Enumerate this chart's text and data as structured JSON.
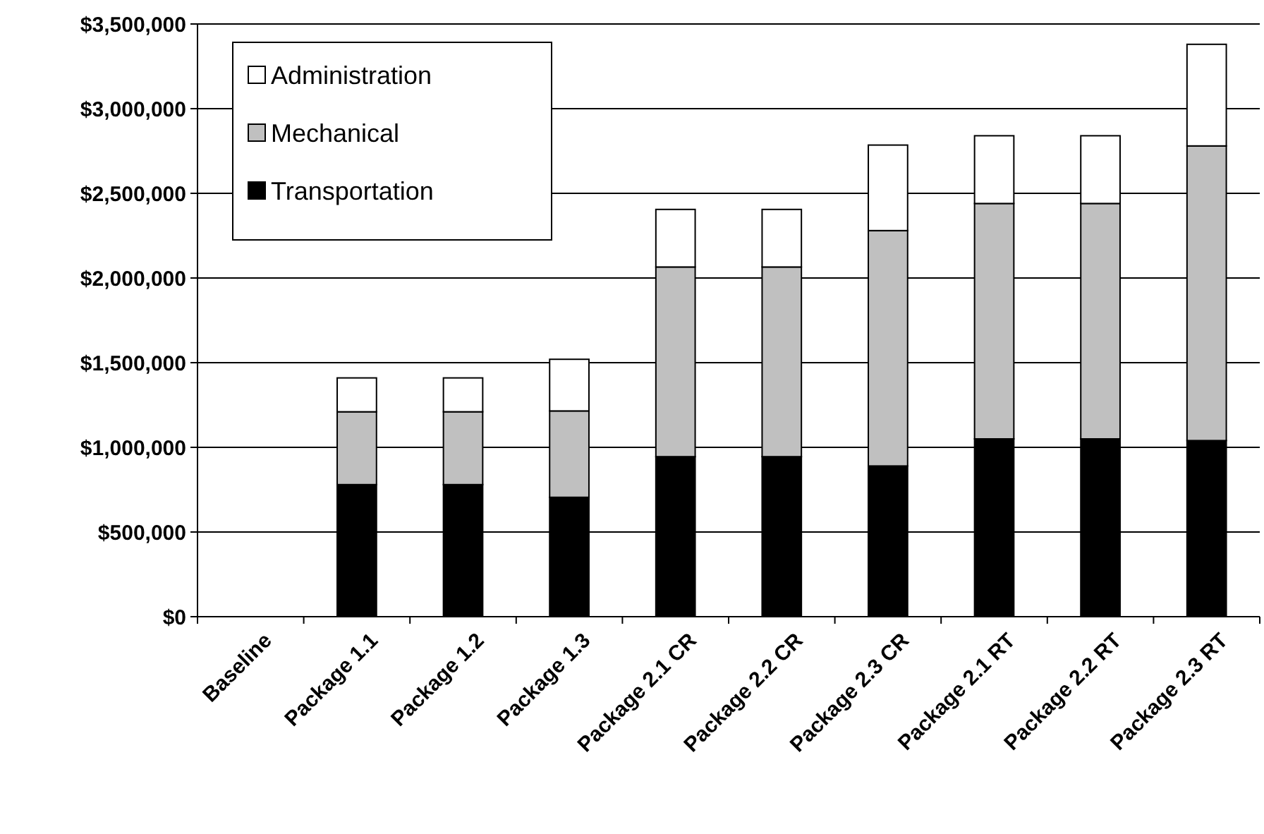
{
  "chart_data": {
    "type": "bar",
    "stacked": true,
    "categories": [
      "Baseline",
      "Package 1.1",
      "Package 1.2",
      "Package 1.3",
      "Package 2.1 CR",
      "Package 2.2 CR",
      "Package 2.3 CR",
      "Package 2.1 RT",
      "Package 2.2 RT",
      "Package 2.3 RT"
    ],
    "series": [
      {
        "name": "Transportation",
        "color": "#000000",
        "values": [
          0,
          780000,
          780000,
          705000,
          945000,
          945000,
          890000,
          1050000,
          1050000,
          1040000
        ]
      },
      {
        "name": "Mechanical",
        "color": "#c0c0c0",
        "values": [
          0,
          430000,
          430000,
          510000,
          1120000,
          1120000,
          1390000,
          1390000,
          1390000,
          1740000
        ]
      },
      {
        "name": "Administration",
        "color": "#ffffff",
        "values": [
          0,
          200000,
          200000,
          305000,
          340000,
          340000,
          505000,
          400000,
          400000,
          600000
        ]
      }
    ],
    "ylim": [
      0,
      3500000
    ],
    "yticks": [
      {
        "value": 0,
        "label": "$0"
      },
      {
        "value": 500000,
        "label": "$500,000"
      },
      {
        "value": 1000000,
        "label": "$1,000,000"
      },
      {
        "value": 1500000,
        "label": "$1,500,000"
      },
      {
        "value": 2000000,
        "label": "$2,000,000"
      },
      {
        "value": 2500000,
        "label": "$2,500,000"
      },
      {
        "value": 3000000,
        "label": "$3,000,000"
      },
      {
        "value": 3500000,
        "label": "$3,500,000"
      }
    ],
    "grid": "y",
    "legend": "top left"
  }
}
